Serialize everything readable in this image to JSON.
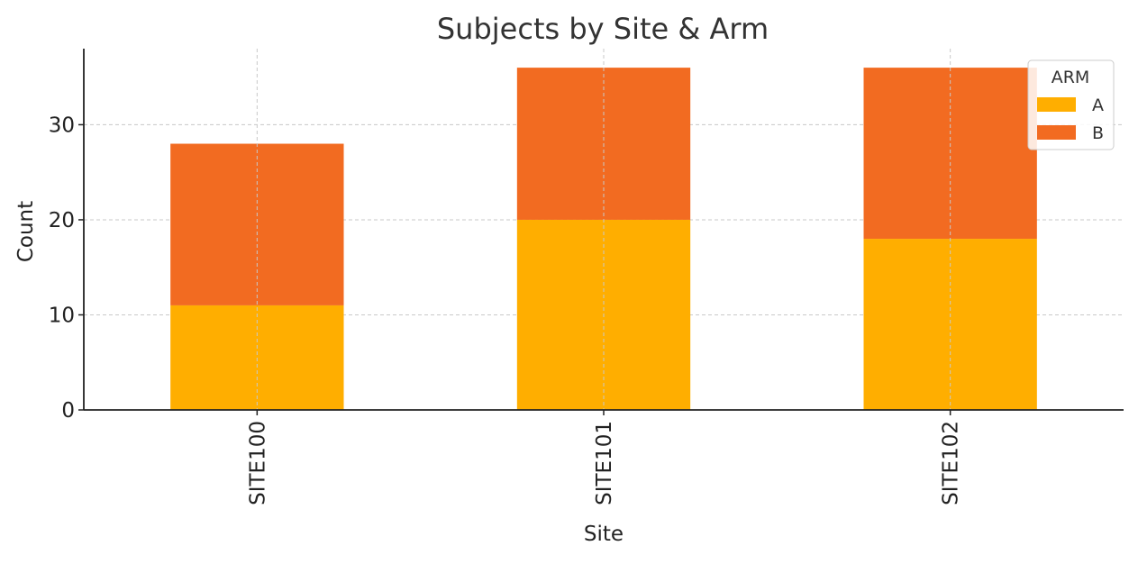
{
  "chart_data": {
    "type": "bar",
    "stacked": true,
    "title": "Subjects by Site & Arm",
    "xlabel": "Site",
    "ylabel": "Count",
    "categories": [
      "SITE100",
      "SITE101",
      "SITE102"
    ],
    "series": [
      {
        "name": "A",
        "values": [
          11,
          20,
          18
        ],
        "color": "#FFAE00"
      },
      {
        "name": "B",
        "values": [
          17,
          16,
          18
        ],
        "color": "#F26B21"
      }
    ],
    "ylim": [
      0,
      38
    ],
    "yticks": [
      0,
      10,
      20,
      30
    ],
    "grid": true,
    "legend": {
      "title": "ARM",
      "position": "top-right"
    }
  }
}
